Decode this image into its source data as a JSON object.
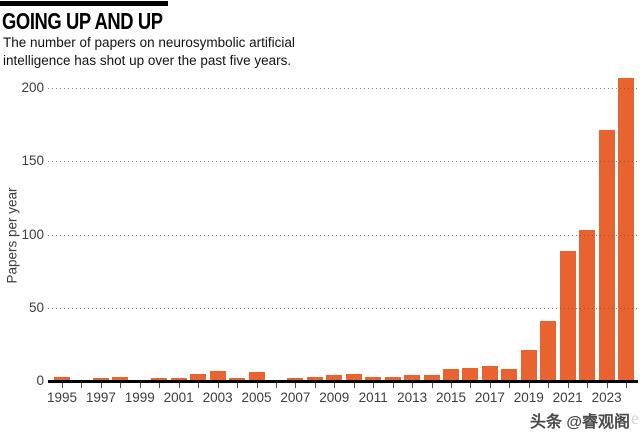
{
  "header": {
    "title": "GOING UP AND UP",
    "subtitle": "The number of papers on neurosymbolic artificial intelligence has shot up over the past five years."
  },
  "chart_data": {
    "type": "bar",
    "title": "GOING UP AND UP",
    "subtitle": "The number of papers on neurosymbolic artificial intelligence has shot up over the past five years.",
    "xlabel": "",
    "ylabel": "Papers per year",
    "x": [
      1995,
      1996,
      1997,
      1998,
      1999,
      2000,
      2001,
      2002,
      2003,
      2004,
      2005,
      2006,
      2007,
      2008,
      2009,
      2010,
      2011,
      2012,
      2013,
      2014,
      2015,
      2016,
      2017,
      2018,
      2019,
      2020,
      2021,
      2022,
      2023,
      2024
    ],
    "values": [
      3,
      1,
      2,
      3,
      1,
      2,
      2,
      5,
      7,
      2,
      6,
      1,
      2,
      3,
      4,
      5,
      3,
      3,
      4,
      4,
      8,
      9,
      10,
      8,
      21,
      41,
      89,
      103,
      171,
      207
    ],
    "ylim": [
      0,
      200
    ],
    "yticks": [
      0,
      50,
      100,
      150,
      200
    ],
    "xtick_labels": [
      "1995",
      "1997",
      "1999",
      "2001",
      "2003",
      "2005",
      "2007",
      "2009",
      "2011",
      "2013",
      "2015",
      "2017",
      "2019",
      "2021",
      "2023"
    ],
    "xtick_label_step": 2,
    "grid": "horizontal-dotted",
    "legend": "none",
    "bar_color": "#E8632F"
  },
  "watermark": {
    "text": "头条 @睿观阁",
    "ghost": "nature"
  }
}
